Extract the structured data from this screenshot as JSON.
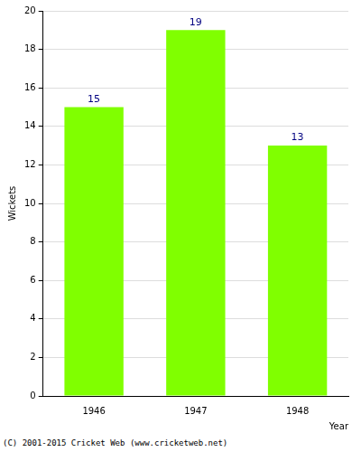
{
  "chart_data": {
    "type": "bar",
    "categories": [
      "1946",
      "1947",
      "1948"
    ],
    "values": [
      15,
      19,
      13
    ],
    "color": "#80ff00",
    "x_label": "Year",
    "y_label": "Wickets",
    "ylim": [
      0,
      20
    ],
    "yticks": [
      0,
      2,
      4,
      6,
      8,
      10,
      12,
      14,
      16,
      18,
      20
    ],
    "grid": true,
    "data_labels": true,
    "annotations": [
      "(C) 2001-2015 Cricket Web (www.cricketweb.net)"
    ]
  }
}
